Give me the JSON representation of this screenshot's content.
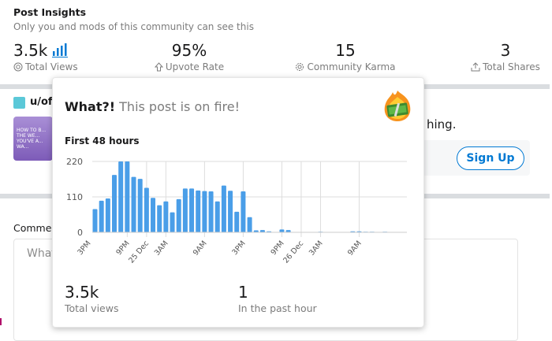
{
  "header": {
    "title": "Post Insights",
    "subtitle": "Only you and mods of this community can see this"
  },
  "stats": [
    {
      "value": "3.5k",
      "label": "Total Views",
      "icon": "eye-icon"
    },
    {
      "value": "95%",
      "label": "Upvote Rate",
      "icon": "upvote-arrow-icon"
    },
    {
      "value": "15",
      "label": "Community Karma",
      "icon": "karma-gear-icon"
    },
    {
      "value": "3",
      "label": "Total Shares",
      "icon": "share-icon"
    }
  ],
  "post": {
    "author": "u/off",
    "thumbnail_text": "HOW TO B... THE WE... YOU'VE A... WA...",
    "body_fragment": "hing.",
    "signup_label": "Sign Up"
  },
  "comments": {
    "label": "Commen",
    "placeholder": "What"
  },
  "popup": {
    "headline_bold": "What?!",
    "headline_rest": " This post is on fire!",
    "emoji": "fire-money-icon",
    "chart_title": "First 48 hours",
    "total_views_value": "3.5k",
    "total_views_label": "Total views",
    "past_hour_value": "1",
    "past_hour_label": "In the past hour"
  },
  "colors": {
    "bar": "#4a9ee8",
    "accent": "#0079d3",
    "divider": "#dadde0"
  },
  "chart_data": {
    "type": "bar",
    "title": "First 48 hours",
    "x_unit": "hour",
    "x_first": "24 Dec 4PM",
    "values": [
      72,
      98,
      105,
      178,
      220,
      220,
      172,
      166,
      138,
      107,
      84,
      96,
      62,
      103,
      136,
      136,
      130,
      128,
      127,
      96,
      145,
      129,
      64,
      127,
      47,
      6,
      7,
      3,
      0,
      9,
      7,
      0,
      0,
      0,
      0,
      1,
      0,
      0,
      0,
      0,
      3,
      3,
      2,
      1,
      0,
      2,
      0,
      0
    ],
    "ylim": [
      0,
      220
    ],
    "yticks": [
      "0",
      "110",
      "220"
    ],
    "xticks": [
      {
        "label": "3PM",
        "hour": -1
      },
      {
        "label": "9PM",
        "hour": 5
      },
      {
        "label": "25 Dec",
        "hour": 8
      },
      {
        "label": "3AM",
        "hour": 11
      },
      {
        "label": "9AM",
        "hour": 17
      },
      {
        "label": "3PM",
        "hour": 23
      },
      {
        "label": "9PM",
        "hour": 29
      },
      {
        "label": "26 Dec",
        "hour": 32
      },
      {
        "label": "3AM",
        "hour": 35
      },
      {
        "label": "9AM",
        "hour": 41
      }
    ],
    "grid": true,
    "xlabel": "",
    "ylabel": ""
  }
}
